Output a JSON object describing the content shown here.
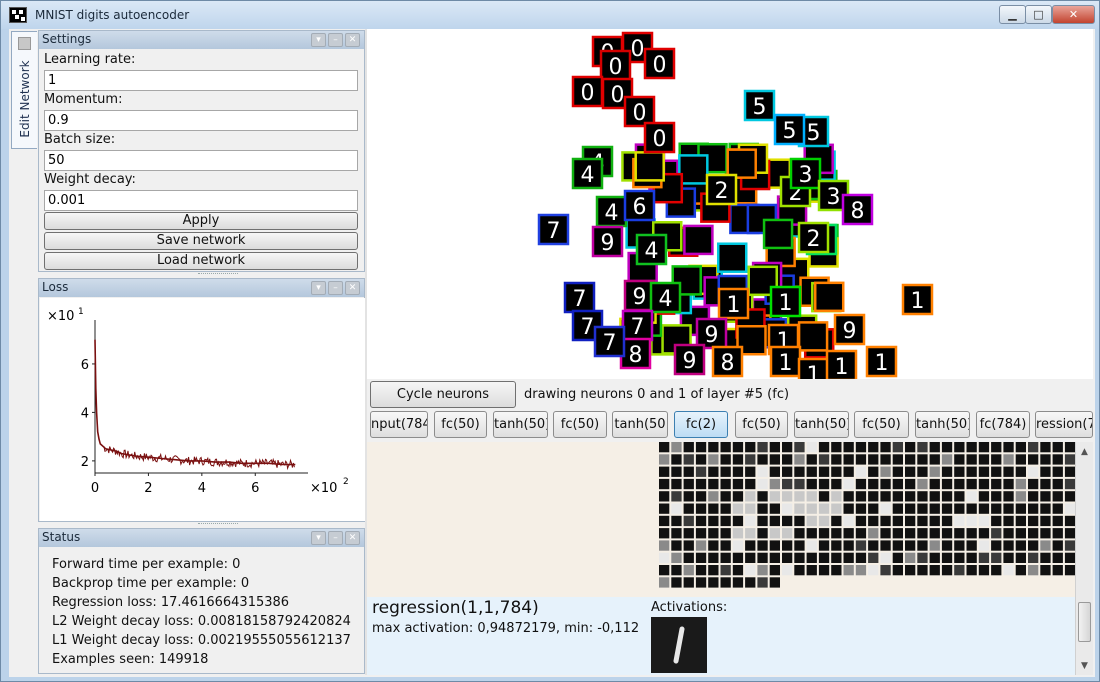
{
  "window": {
    "title": "MNIST digits autoencoder"
  },
  "side_tab": {
    "label": "Edit Network"
  },
  "settings": {
    "title": "Settings",
    "fields": [
      {
        "label": "Learning rate:",
        "value": "1"
      },
      {
        "label": "Momentum:",
        "value": "0.9"
      },
      {
        "label": "Batch size:",
        "value": "50"
      },
      {
        "label": "Weight decay:",
        "value": "0.001"
      }
    ],
    "apply_label": "Apply",
    "save_label": "Save network",
    "load_label": "Load network"
  },
  "loss_panel": {
    "title": "Loss"
  },
  "chart_data": {
    "type": "line",
    "title": "",
    "y_exponent_label": "×10",
    "y_exponent": "1",
    "x_exponent_label": "×10",
    "x_exponent": "2",
    "yticks": [
      "2",
      "4",
      "6"
    ],
    "xticks": [
      "0",
      "2",
      "4",
      "6"
    ],
    "xlim": [
      0,
      7.6
    ],
    "ylim": [
      1.5,
      7.4
    ],
    "color": "#7a1010",
    "series": [
      {
        "x": [
          0,
          0.03,
          0.06,
          0.1,
          0.15,
          0.2,
          0.3,
          0.4,
          0.6,
          0.8,
          1.0,
          1.5,
          2.0,
          2.5,
          3.0,
          3.5,
          4.0,
          4.5,
          5.0,
          5.5,
          6.0,
          6.5,
          7.0,
          7.5
        ],
        "y": [
          7.0,
          5.0,
          4.0,
          3.2,
          2.9,
          2.7,
          2.6,
          2.5,
          2.45,
          2.4,
          2.3,
          2.2,
          2.15,
          2.1,
          2.05,
          2.0,
          2.0,
          1.95,
          1.95,
          1.9,
          1.9,
          1.9,
          1.85,
          1.85
        ]
      }
    ]
  },
  "status": {
    "title": "Status",
    "lines": [
      "Forward time per example: 0",
      "Backprop time per example: 0",
      "Regression loss: 17.4616664315386",
      "L2 Weight decay loss: 0.00818158792420824",
      "L1 Weight decay loss: 0.00219555055612137",
      "Examples seen: 149918"
    ]
  },
  "controls": {
    "cycle_label": "Cycle neurons",
    "drawing_text": "drawing neurons 0 and 1 of layer #5 (fc)"
  },
  "layers": [
    "nput(784",
    "fc(50)",
    "tanh(50)",
    "fc(50)",
    "tanh(50",
    "fc(2)",
    "fc(50)",
    "tanh(50)",
    "fc(50)",
    "tanh(50)",
    "fc(784)",
    "ression(7"
  ],
  "active_layer_index": 5,
  "info": {
    "title": "regression(1,1,784)",
    "sub": "max activation: 0,94872179, min: -0,112",
    "activations_label": "Activations:"
  },
  "scatter_digits": [
    "0",
    "0",
    "0",
    "0",
    "0",
    "0",
    "0",
    "0",
    "5",
    "5",
    "5",
    "4",
    "4",
    "4",
    "6",
    "2",
    "2",
    "3",
    "3",
    "3",
    "8",
    "7",
    "9",
    "4",
    "7",
    "7",
    "9",
    "4",
    "1",
    "1",
    "2",
    "7",
    "9",
    "1",
    "9",
    "8",
    "1",
    "1",
    "1",
    "1",
    "1",
    "9",
    "8",
    "7"
  ]
}
